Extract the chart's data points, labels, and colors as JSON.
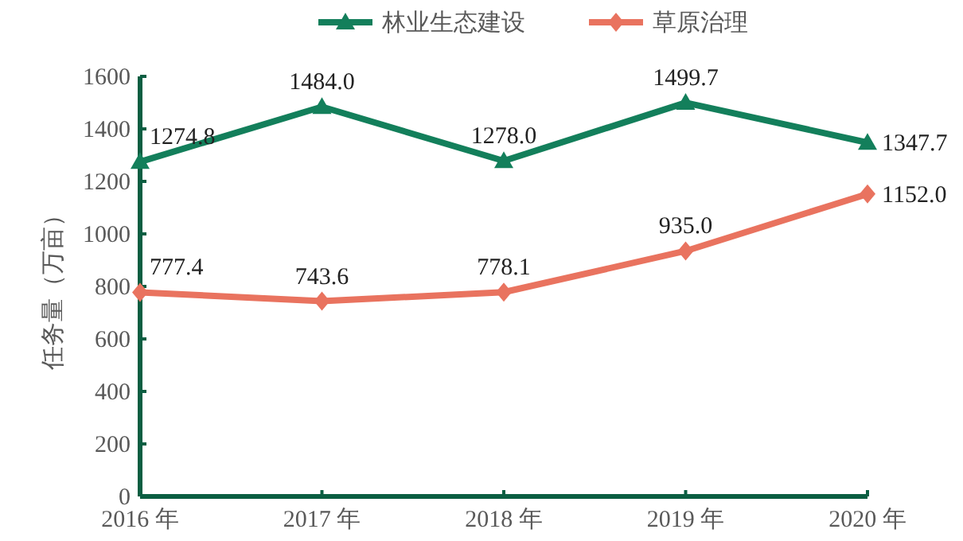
{
  "chart_data": {
    "type": "line",
    "ylabel": "任务量（万亩）",
    "categories": [
      "2016 年",
      "2017 年",
      "2018 年",
      "2019 年",
      "2020 年"
    ],
    "ylim": [
      0,
      1600
    ],
    "yticks": [
      0,
      200,
      400,
      600,
      800,
      1000,
      1200,
      1400,
      1600
    ],
    "legend": "top",
    "grid": false,
    "series": [
      {
        "name": "林业生态建设",
        "color": "#137f5b",
        "marker": "triangle",
        "values": [
          1274.8,
          1484.0,
          1278.0,
          1499.7,
          1347.7
        ],
        "value_labels": [
          "1274.8",
          "1484.0",
          "1278.0",
          "1499.7",
          "1347.7"
        ]
      },
      {
        "name": "草原治理",
        "color": "#e9735f",
        "marker": "diamond",
        "values": [
          777.4,
          743.6,
          778.1,
          935.0,
          1152.0
        ],
        "value_labels": [
          "777.4",
          "743.6",
          "778.1",
          "935.0",
          "1152.0"
        ]
      }
    ]
  }
}
